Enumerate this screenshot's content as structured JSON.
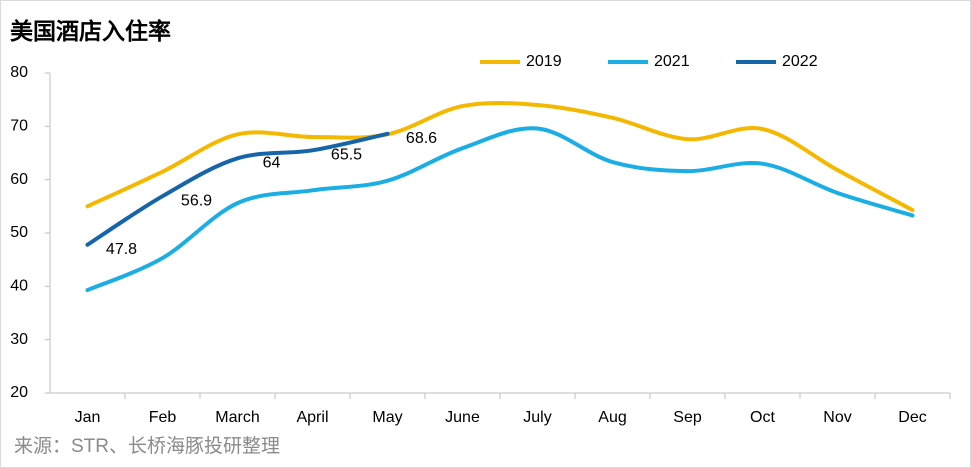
{
  "chart_data": {
    "type": "line",
    "title": "美国酒店入住率",
    "source": "来源：STR、长桥海豚投研整理",
    "categories": [
      "Jan",
      "Feb",
      "March",
      "April",
      "May",
      "June",
      "July",
      "Aug",
      "Sep",
      "Oct",
      "Nov",
      "Dec"
    ],
    "series": [
      {
        "name": "2019",
        "color": "#f5b800",
        "values": [
          55,
          61.5,
          68.5,
          68,
          68.5,
          73.8,
          74,
          71.6,
          67.6,
          69.5,
          61.8,
          54.3
        ]
      },
      {
        "name": "2021",
        "color": "#1aaee5",
        "values": [
          39.3,
          45.3,
          55.6,
          58,
          59.8,
          65.9,
          69.6,
          63.3,
          61.6,
          63,
          57.5,
          53.3
        ]
      },
      {
        "name": "2022",
        "color": "#1565a8",
        "values": [
          47.8,
          56.9,
          64,
          65.5,
          68.6,
          null,
          null,
          null,
          null,
          null,
          null,
          null
        ]
      }
    ],
    "ylim": [
      20,
      80
    ],
    "yticks": [
      20,
      30,
      40,
      50,
      60,
      70,
      80
    ],
    "legend": "top",
    "grid": false
  }
}
